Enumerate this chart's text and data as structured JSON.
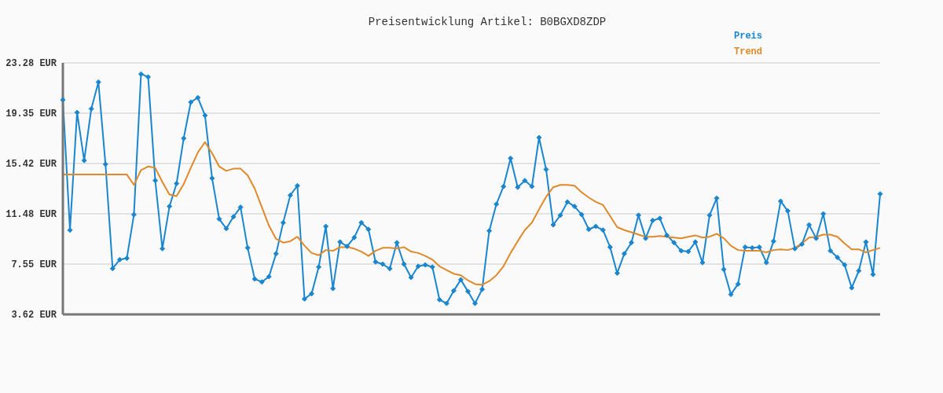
{
  "chart_data": {
    "type": "line",
    "title": "Preisentwicklung Artikel: B0BGXD8ZDP",
    "categories": [
      null,
      null,
      null,
      null,
      null,
      null,
      null,
      null,
      null,
      null,
      null,
      null,
      null,
      null,
      null,
      null,
      null,
      null,
      null,
      null,
      null,
      null,
      null,
      null,
      null,
      null,
      null,
      null,
      null,
      null,
      null,
      null,
      null,
      null,
      null,
      null,
      null,
      null,
      null,
      null,
      null,
      null,
      null,
      null,
      null,
      null,
      null,
      null,
      null,
      null,
      null,
      null,
      null,
      null,
      null,
      null,
      null,
      null,
      null,
      null,
      null,
      null,
      null,
      null,
      null,
      null,
      null,
      null,
      null,
      null,
      null,
      null,
      null,
      null,
      null,
      null,
      null,
      null,
      null,
      null,
      null,
      null,
      null,
      null,
      null,
      null,
      null,
      null,
      null,
      null,
      null,
      null,
      null,
      null,
      null,
      null,
      null,
      null,
      null,
      null,
      null,
      null,
      null,
      null,
      null,
      null,
      null,
      null,
      null,
      null,
      null,
      null,
      null,
      null,
      null,
      null
    ],
    "series": [
      {
        "name": "Preis",
        "color": "#1a86cf",
        "marker": "diamond",
        "values": [
          20.39,
          10.21,
          19.4,
          15.65,
          19.69,
          21.78,
          15.36,
          7.2,
          7.9,
          8.01,
          11.42,
          22.41,
          22.18,
          14.08,
          8.76,
          12.06,
          13.85,
          17.38,
          20.21,
          20.56,
          19.17,
          14.26,
          11.08,
          10.33,
          11.25,
          12.0,
          8.82,
          6.39,
          6.16,
          6.57,
          8.36,
          10.79,
          12.93,
          13.68,
          4.83,
          5.24,
          7.32,
          10.5,
          5.64,
          9.28,
          8.94,
          9.63,
          10.79,
          10.27,
          7.72,
          7.55,
          7.2,
          9.23,
          7.55,
          6.51,
          7.38,
          7.49,
          7.32,
          4.77,
          4.48,
          5.47,
          6.33,
          5.41,
          4.48,
          5.58,
          10.15,
          12.23,
          13.62,
          15.82,
          13.56,
          14.08,
          13.62,
          17.44,
          14.95,
          10.62,
          11.37,
          12.41,
          12.06,
          11.42,
          10.27,
          10.5,
          10.21,
          8.88,
          6.85,
          8.36,
          9.23,
          11.37,
          9.57,
          10.96,
          11.13,
          9.8,
          9.23,
          8.59,
          8.53,
          9.28,
          7.67,
          11.37,
          12.7,
          7.14,
          5.18,
          5.99,
          8.88,
          8.82,
          8.88,
          7.67,
          9.34,
          12.47,
          11.71,
          8.76,
          9.11,
          10.62,
          9.57,
          11.48,
          8.59,
          8.07,
          7.49,
          5.7,
          7.03,
          9.28,
          6.74,
          13.04
        ]
      },
      {
        "name": "Trend",
        "color": "#e0892a",
        "marker": "none",
        "values": [
          14.55,
          14.55,
          14.55,
          14.55,
          14.55,
          14.55,
          14.55,
          14.55,
          14.55,
          14.55,
          13.74,
          14.9,
          15.18,
          15.07,
          13.97,
          12.99,
          12.87,
          13.8,
          15.07,
          16.28,
          17.09,
          16.22,
          15.18,
          14.84,
          15.01,
          15.01,
          14.49,
          13.45,
          12.0,
          10.56,
          9.52,
          9.23,
          9.34,
          9.69,
          8.99,
          8.42,
          8.24,
          8.65,
          8.59,
          8.88,
          8.88,
          8.76,
          8.53,
          8.19,
          8.59,
          8.82,
          8.82,
          8.76,
          8.88,
          8.53,
          8.42,
          8.19,
          7.9,
          7.38,
          7.09,
          6.8,
          6.68,
          6.28,
          5.99,
          5.93,
          6.22,
          6.68,
          7.38,
          8.42,
          9.34,
          10.21,
          10.79,
          11.83,
          12.81,
          13.56,
          13.74,
          13.74,
          13.68,
          13.16,
          12.76,
          12.41,
          12.18,
          11.31,
          10.44,
          10.21,
          10.04,
          9.86,
          9.69,
          9.69,
          9.75,
          9.69,
          9.63,
          9.57,
          9.69,
          9.8,
          9.63,
          9.69,
          9.92,
          9.57,
          8.99,
          8.65,
          8.59,
          8.59,
          8.59,
          8.47,
          8.65,
          8.71,
          8.65,
          8.82,
          9.17,
          9.63,
          9.69,
          9.86,
          9.86,
          9.69,
          9.17,
          8.71,
          8.71,
          8.47,
          8.65,
          8.82
        ]
      }
    ],
    "ylim": [
      3.62,
      23.28
    ],
    "yticks": [
      {
        "value": 3.62,
        "label": "3.62 EUR"
      },
      {
        "value": 7.55,
        "label": "7.55 EUR"
      },
      {
        "value": 11.48,
        "label": "11.48 EUR"
      },
      {
        "value": 15.42,
        "label": "15.42 EUR"
      },
      {
        "value": 19.35,
        "label": "19.35 EUR"
      },
      {
        "value": 23.28,
        "label": "23.28 EUR"
      }
    ],
    "grid": "y",
    "legend": "top right",
    "line_style": "solid"
  }
}
